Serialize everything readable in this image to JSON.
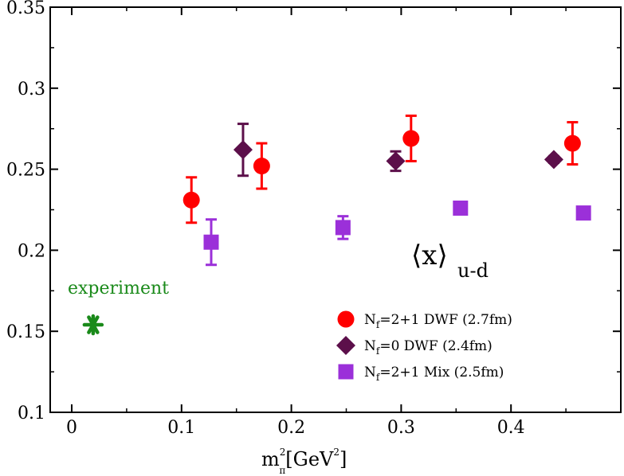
{
  "chart_data": {
    "type": "scatter",
    "xlim": [
      -0.02,
      0.49
    ],
    "ylim": [
      0.1,
      0.35
    ],
    "x_ticks": [
      "0",
      "0.1",
      "0.2",
      "0.3",
      "0.4"
    ],
    "y_ticks": [
      "0.1",
      "0.15",
      "0.2",
      "0.25",
      "0.3",
      "0.35"
    ],
    "xlabel": {
      "base": "m",
      "sup": "2",
      "sub": "π",
      "rest": "[GeV",
      "unit_sup": "2",
      "close": "]"
    },
    "grid": false,
    "legend_position": "bottom-right",
    "observable": {
      "main": "⟨x⟩",
      "sub": "u-d"
    },
    "series": [
      {
        "name": {
          "prefix": "N",
          "sub": "f",
          "rest": "=2+1 DWF (2.7fm)"
        },
        "marker": "circle",
        "color": "#ff0000",
        "points": [
          {
            "x": 0.109,
            "y": 0.231,
            "err": 0.014
          },
          {
            "x": 0.173,
            "y": 0.252,
            "err": 0.014
          },
          {
            "x": 0.309,
            "y": 0.269,
            "err": 0.014
          },
          {
            "x": 0.456,
            "y": 0.266,
            "err": 0.013
          }
        ]
      },
      {
        "name": {
          "prefix": "N",
          "sub": "f",
          "rest": "=0 DWF (2.4fm)"
        },
        "marker": "diamond",
        "color": "#5c0f4a",
        "points": [
          {
            "x": 0.156,
            "y": 0.262,
            "err": 0.016
          },
          {
            "x": 0.295,
            "y": 0.255,
            "err": 0.006
          },
          {
            "x": 0.439,
            "y": 0.256,
            "err": 0.002
          }
        ]
      },
      {
        "name": {
          "prefix": "N",
          "sub": "f",
          "rest": "=2+1 Mix (2.5fm)"
        },
        "marker": "square",
        "color": "#9b30d9",
        "points": [
          {
            "x": 0.127,
            "y": 0.205,
            "err": 0.014
          },
          {
            "x": 0.247,
            "y": 0.214,
            "err": 0.007
          },
          {
            "x": 0.354,
            "y": 0.226,
            "err": 0.003
          },
          {
            "x": 0.466,
            "y": 0.223,
            "err": 0.002
          }
        ]
      }
    ],
    "experiment": {
      "label": "experiment",
      "x": 0.0195,
      "y": 0.154,
      "color": "#1a8a1a"
    }
  }
}
